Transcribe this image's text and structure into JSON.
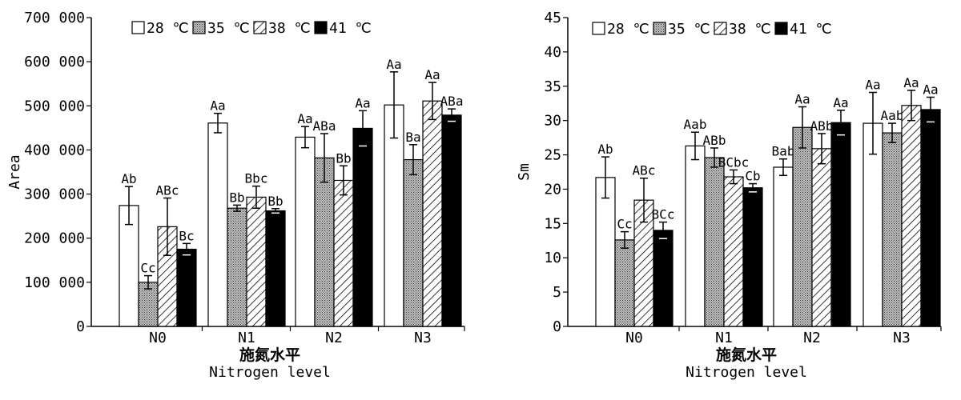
{
  "chart_data": [
    {
      "type": "bar",
      "categories": [
        "N0",
        "N1",
        "N2",
        "N3"
      ],
      "xlabel_cn": "施氮水平",
      "xlabel": "Nitrogen level",
      "ylabel": "Area",
      "ylim": [
        0,
        700000
      ],
      "ytick_values": [
        0,
        100000,
        200000,
        300000,
        400000,
        500000,
        600000,
        700000
      ],
      "ytick_labels": [
        "0",
        "100 000",
        "200 000",
        "300 000",
        "400 000",
        "500 000",
        "600 000",
        "700 000"
      ],
      "legend_position": "top-left",
      "series": [
        {
          "name": "28 ℃",
          "pattern": "white",
          "values": [
            274000,
            461000,
            429000,
            502000
          ],
          "errors": [
            43000,
            22000,
            24000,
            75000
          ],
          "labels": [
            "Ab",
            "Aa",
            "Aa",
            "Aa"
          ]
        },
        {
          "name": "35 ℃",
          "pattern": "dotted",
          "values": [
            100000,
            268000,
            382000,
            378000
          ],
          "errors": [
            15000,
            7000,
            55000,
            34000
          ],
          "labels": [
            "Cc",
            "Bb",
            "ABa",
            "Ba"
          ]
        },
        {
          "name": "38 ℃",
          "pattern": "hatch",
          "values": [
            226000,
            293000,
            331000,
            511000
          ],
          "errors": [
            65000,
            25000,
            33000,
            42000
          ],
          "labels": [
            "ABc",
            "Bbc",
            "Bb",
            "Aa"
          ]
        },
        {
          "name": "41 ℃",
          "pattern": "black",
          "values": [
            175000,
            262000,
            449000,
            479000
          ],
          "errors": [
            13000,
            5000,
            40000,
            14000
          ],
          "labels": [
            "Bc",
            "Bb",
            "Aa",
            "ABa"
          ]
        }
      ]
    },
    {
      "type": "bar",
      "categories": [
        "N0",
        "N1",
        "N2",
        "N3"
      ],
      "xlabel_cn": "施氮水平",
      "xlabel": "Nitrogen level",
      "ylabel": "Sm",
      "ylim": [
        0,
        45
      ],
      "ytick_values": [
        0,
        5,
        10,
        15,
        20,
        25,
        30,
        35,
        40,
        45
      ],
      "ytick_labels": [
        "0",
        "5",
        "10",
        "15",
        "20",
        "25",
        "30",
        "35",
        "40",
        "45"
      ],
      "legend_position": "top-left",
      "series": [
        {
          "name": "28 ℃",
          "pattern": "white",
          "values": [
            21.7,
            26.3,
            23.2,
            29.6
          ],
          "errors": [
            3.0,
            2.0,
            1.2,
            4.5
          ],
          "labels": [
            "Ab",
            "Aab",
            "Bab",
            "Aa"
          ]
        },
        {
          "name": "35 ℃",
          "pattern": "dotted",
          "values": [
            12.6,
            24.6,
            29.0,
            28.2
          ],
          "errors": [
            1.2,
            1.4,
            3.0,
            1.4
          ],
          "labels": [
            "Cc",
            "ABb",
            "Aa",
            "Aab"
          ]
        },
        {
          "name": "38 ℃",
          "pattern": "hatch",
          "values": [
            18.4,
            21.8,
            25.9,
            32.2
          ],
          "errors": [
            3.2,
            1.0,
            2.2,
            2.2
          ],
          "labels": [
            "ABc",
            "BCbc",
            "ABb",
            "Aa"
          ]
        },
        {
          "name": "41 ℃",
          "pattern": "black",
          "values": [
            14.0,
            20.2,
            29.7,
            31.6
          ],
          "errors": [
            1.2,
            0.6,
            1.8,
            1.8
          ],
          "labels": [
            "BCc",
            "Cb",
            "Aa",
            "Aa"
          ]
        }
      ]
    }
  ]
}
